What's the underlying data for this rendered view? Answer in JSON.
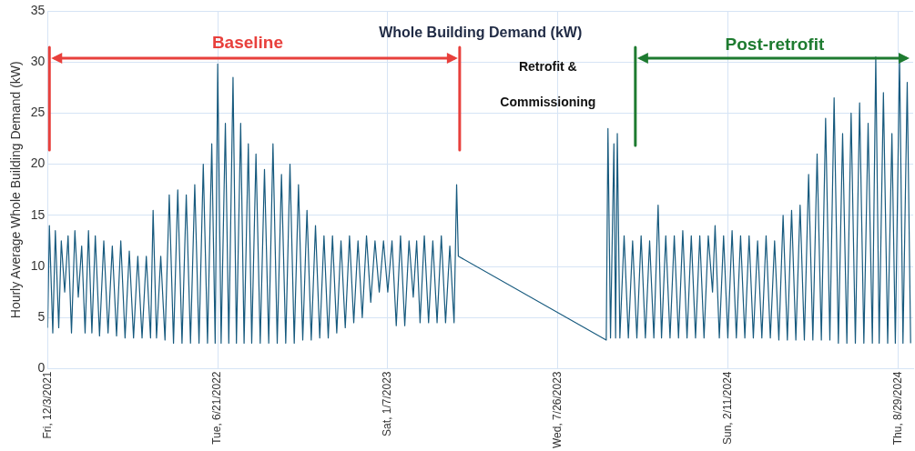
{
  "chart_data": {
    "type": "line",
    "title": "Whole Building Demand (kW)",
    "ylabel": "Hourly Average Whole Building Demand (kW)",
    "annotations": [
      "Baseline",
      "Retrofit & Commissioning",
      "Post-retrofit"
    ],
    "xlim": [
      "2021-12-03",
      "2024-09-16"
    ],
    "xticks": [
      {
        "value": "2021-12-03",
        "label": "Fri, 12/3/2021"
      },
      {
        "value": "2022-06-21",
        "label": "Tue, 6/21/2022"
      },
      {
        "value": "2023-01-07",
        "label": "Sat, 1/7/2023"
      },
      {
        "value": "2023-07-26",
        "label": "Wed, 7/26/2023"
      },
      {
        "value": "2024-02-11",
        "label": "Sun, 2/11/2024"
      },
      {
        "value": "2024-08-29",
        "label": "Thu, 8/29/2024"
      }
    ],
    "ylim": [
      0,
      35
    ],
    "yticks": [
      0,
      5,
      10,
      15,
      20,
      25,
      30,
      35
    ],
    "grid": true,
    "legend": false,
    "marker": "none",
    "line_style": "solid",
    "series": [
      {
        "color": "#175a7e",
        "x": [
          "2021-12-03",
          "2021-12-05",
          "2021-12-09",
          "2021-12-12",
          "2021-12-16",
          "2021-12-19",
          "2021-12-23",
          "2021-12-27",
          "2021-12-31",
          "2022-01-04",
          "2022-01-08",
          "2022-01-12",
          "2022-01-16",
          "2022-01-20",
          "2022-01-24",
          "2022-01-28",
          "2022-02-02",
          "2022-02-07",
          "2022-02-12",
          "2022-02-17",
          "2022-02-22",
          "2022-02-27",
          "2022-03-04",
          "2022-03-09",
          "2022-03-14",
          "2022-03-19",
          "2022-03-24",
          "2022-03-29",
          "2022-04-03",
          "2022-04-06",
          "2022-04-10",
          "2022-04-15",
          "2022-04-20",
          "2022-04-25",
          "2022-04-30",
          "2022-05-05",
          "2022-05-10",
          "2022-05-15",
          "2022-05-20",
          "2022-05-25",
          "2022-05-30",
          "2022-06-04",
          "2022-06-09",
          "2022-06-14",
          "2022-06-18",
          "2022-06-21",
          "2022-06-25",
          "2022-06-30",
          "2022-07-04",
          "2022-07-09",
          "2022-07-13",
          "2022-07-18",
          "2022-07-22",
          "2022-07-27",
          "2022-07-31",
          "2022-08-05",
          "2022-08-10",
          "2022-08-15",
          "2022-08-20",
          "2022-08-25",
          "2022-08-30",
          "2022-09-04",
          "2022-09-09",
          "2022-09-14",
          "2022-09-19",
          "2022-09-24",
          "2022-09-29",
          "2022-10-04",
          "2022-10-09",
          "2022-10-14",
          "2022-10-19",
          "2022-10-24",
          "2022-10-29",
          "2022-11-03",
          "2022-11-08",
          "2022-11-13",
          "2022-11-18",
          "2022-11-23",
          "2022-11-28",
          "2022-12-03",
          "2022-12-08",
          "2022-12-13",
          "2022-12-18",
          "2022-12-23",
          "2022-12-28",
          "2023-01-02",
          "2023-01-07",
          "2023-01-12",
          "2023-01-17",
          "2023-01-22",
          "2023-01-27",
          "2023-02-01",
          "2023-02-06",
          "2023-02-10",
          "2023-02-14",
          "2023-02-19",
          "2023-02-24",
          "2023-03-01",
          "2023-03-06",
          "2023-03-11",
          "2023-03-16",
          "2023-03-21",
          "2023-03-26",
          "2023-03-29",
          "2023-03-31",
          "2023-09-21",
          "2023-09-23",
          "2023-09-26",
          "2023-09-30",
          "2023-10-02",
          "2023-10-04",
          "2023-10-07",
          "2023-10-12",
          "2023-10-17",
          "2023-10-22",
          "2023-10-27",
          "2023-11-01",
          "2023-11-06",
          "2023-11-11",
          "2023-11-16",
          "2023-11-21",
          "2023-11-25",
          "2023-11-30",
          "2023-12-05",
          "2023-12-10",
          "2023-12-15",
          "2023-12-20",
          "2023-12-25",
          "2023-12-30",
          "2024-01-04",
          "2024-01-09",
          "2024-01-14",
          "2024-01-19",
          "2024-01-24",
          "2024-01-27",
          "2024-02-01",
          "2024-02-06",
          "2024-02-11",
          "2024-02-16",
          "2024-02-21",
          "2024-02-26",
          "2024-03-02",
          "2024-03-07",
          "2024-03-12",
          "2024-03-17",
          "2024-03-22",
          "2024-03-27",
          "2024-04-01",
          "2024-04-06",
          "2024-04-11",
          "2024-04-16",
          "2024-04-21",
          "2024-04-26",
          "2024-05-01",
          "2024-05-06",
          "2024-05-11",
          "2024-05-16",
          "2024-05-21",
          "2024-05-26",
          "2024-05-31",
          "2024-06-05",
          "2024-06-10",
          "2024-06-15",
          "2024-06-20",
          "2024-06-25",
          "2024-06-30",
          "2024-07-05",
          "2024-07-10",
          "2024-07-15",
          "2024-07-20",
          "2024-07-25",
          "2024-07-30",
          "2024-08-03",
          "2024-08-07",
          "2024-08-12",
          "2024-08-17",
          "2024-08-22",
          "2024-08-26",
          "2024-08-31",
          "2024-09-04",
          "2024-09-09",
          "2024-09-13"
        ],
        "values": [
          4,
          14,
          3.5,
          13.5,
          4,
          12.5,
          7.5,
          13,
          3.5,
          13.5,
          7,
          12,
          3.5,
          13.5,
          3.5,
          13,
          3.2,
          12.5,
          3.5,
          12,
          3.2,
          12.5,
          3,
          11.5,
          3,
          11,
          3,
          11,
          3,
          15.5,
          3,
          11,
          2.8,
          17,
          2.5,
          17.5,
          2.5,
          17,
          2.5,
          18,
          2.5,
          20,
          2.5,
          22,
          2.5,
          29.8,
          2.5,
          24,
          2.5,
          28.5,
          2.5,
          24,
          2.5,
          22,
          2.5,
          21,
          2.5,
          19.5,
          2.5,
          22,
          2.5,
          19,
          2.5,
          20,
          2.5,
          18,
          2.8,
          15.5,
          2.8,
          14,
          3,
          13,
          3,
          13,
          3.5,
          12.5,
          4,
          13,
          4.5,
          12.5,
          5,
          13,
          6.5,
          12.5,
          7.5,
          12.5,
          7.5,
          12.5,
          4.2,
          13,
          4.2,
          12.5,
          7,
          12.5,
          4.5,
          13,
          4.5,
          12.5,
          4.5,
          13,
          4.5,
          12,
          4.5,
          18,
          11,
          2.8,
          23.5,
          3,
          22,
          3,
          23,
          3,
          13,
          3,
          12.5,
          3,
          13,
          3,
          12.5,
          3,
          16,
          3,
          13,
          3,
          13,
          3,
          13.5,
          3,
          13,
          3,
          13,
          3,
          13,
          7.5,
          14,
          3,
          13,
          3,
          13.5,
          3,
          13,
          3,
          13,
          3,
          12.5,
          3,
          13,
          3,
          12.5,
          2.8,
          15,
          2.8,
          15.5,
          2.8,
          16,
          2.8,
          19,
          2.8,
          21,
          2.8,
          24.5,
          2.8,
          26.5,
          2.5,
          23,
          2.5,
          25,
          2.5,
          26,
          2.5,
          24,
          2.5,
          30.5,
          2.5,
          27,
          2.5,
          23,
          2.5,
          30.5,
          2.5,
          28,
          2.5
        ]
      }
    ]
  }
}
